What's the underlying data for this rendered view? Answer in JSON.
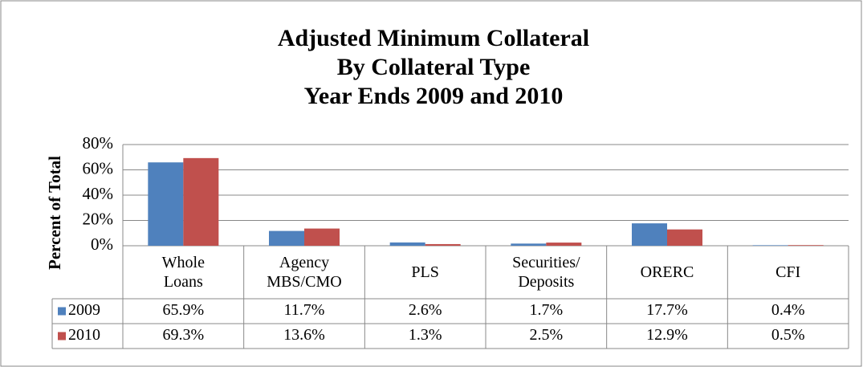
{
  "chart_data": {
    "type": "bar",
    "title": [
      "Adjusted Minimum Collateral",
      "By Collateral Type",
      "Year Ends 2009 and 2010"
    ],
    "y_label": "Percent of Total",
    "categories": [
      "Whole\nLoans",
      "Agency\nMBS/CMO",
      "PLS",
      "Securities/\nDeposits",
      "ORERC",
      "CFI"
    ],
    "series": [
      {
        "name": "2009",
        "color": "#4f81bd",
        "values": [
          65.9,
          11.7,
          2.6,
          1.7,
          17.7,
          0.4
        ],
        "value_labels": [
          "65.9%",
          "11.7%",
          "2.6%",
          "1.7%",
          "17.7%",
          "0.4%"
        ]
      },
      {
        "name": "2010",
        "color": "#c0504d",
        "values": [
          69.3,
          13.6,
          1.3,
          2.5,
          12.9,
          0.5
        ],
        "value_labels": [
          "69.3%",
          "13.6%",
          "1.3%",
          "2.5%",
          "12.9%",
          "0.5%"
        ]
      }
    ],
    "ylim": [
      0,
      80
    ],
    "yticks": [
      {
        "value": 0,
        "label": "0%"
      },
      {
        "value": 20,
        "label": "20%"
      },
      {
        "value": 40,
        "label": "40%"
      },
      {
        "value": 60,
        "label": "60%"
      },
      {
        "value": 80,
        "label": "80%"
      }
    ],
    "grid": true
  }
}
